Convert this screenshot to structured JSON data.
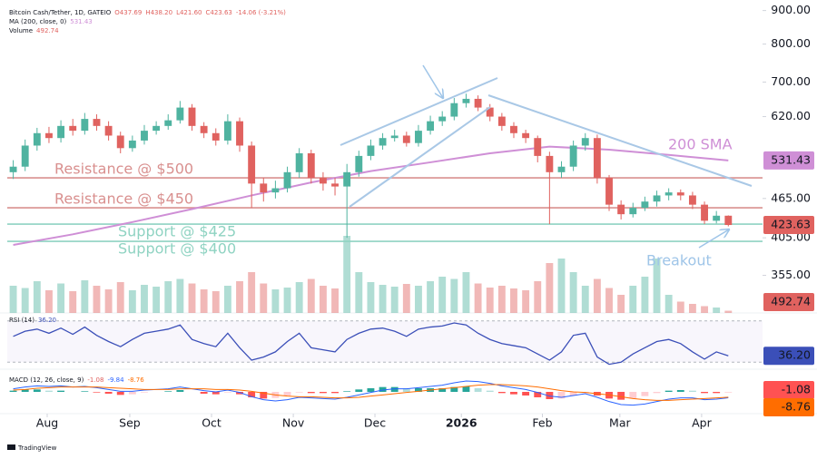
{
  "header": {
    "symbol": "Bitcoin Cash/Tether, 1D, GATEIO",
    "ohlc": [
      "O437.69",
      "H438.20",
      "L421.60",
      "C423.63",
      "-14.06 (-3.21%)"
    ],
    "ma": "MA (200, close, 0)",
    "volume": "Volume",
    "rsi": "RSI (14)",
    "macd": "MACD (12, 26, close, 9)",
    "brand": "TradingView"
  },
  "chart_data": {
    "type": "candlestick",
    "log_scale": true,
    "xlim": [
      -0.5,
      61.5
    ],
    "xticks": [
      {
        "value": 2.85,
        "label": "Aug"
      },
      {
        "value": 9.78,
        "label": "Sep"
      },
      {
        "value": 16.64,
        "label": "Oct"
      },
      {
        "value": 23.5,
        "label": "Nov"
      },
      {
        "value": 30.35,
        "label": "Dec"
      },
      {
        "value": 37.6,
        "label": "2026"
      },
      {
        "value": 44.4,
        "label": "Feb"
      },
      {
        "value": 50.9,
        "label": "Mar"
      },
      {
        "value": 57.76,
        "label": "Apr"
      }
    ],
    "ylim": [
      311,
      934
    ],
    "yticks": [
      {
        "value": 900,
        "label": "900.00"
      },
      {
        "value": 800,
        "label": "800.00"
      },
      {
        "value": 700,
        "label": "700.00"
      },
      {
        "value": 620,
        "label": "620.00"
      },
      {
        "value": 465,
        "label": "465.00"
      },
      {
        "value": 405,
        "label": "405.00"
      },
      {
        "value": 355,
        "label": "355.00"
      }
    ],
    "up_color": "#4fb3a0",
    "down_color": "#e0625f",
    "open": [
      510,
      520,
      560,
      585,
      575,
      600,
      590,
      615,
      600,
      580,
      555,
      570,
      590,
      600,
      612,
      640,
      600,
      585,
      570,
      610,
      560,
      490,
      475,
      482,
      510,
      545,
      500,
      490,
      485,
      510,
      540,
      560,
      575,
      580,
      565,
      590,
      610,
      620,
      650,
      660,
      640,
      620,
      600,
      585,
      575,
      540,
      510,
      520,
      560,
      575,
      500,
      455,
      440,
      450,
      460,
      470,
      475,
      470,
      455,
      430,
      437.69
    ],
    "high": [
      532,
      572,
      596,
      598,
      612,
      615,
      628,
      625,
      610,
      588,
      580,
      602,
      610,
      625,
      655,
      648,
      608,
      595,
      625,
      618,
      568,
      500,
      495,
      520,
      555,
      552,
      510,
      500,
      525,
      550,
      572,
      585,
      592,
      588,
      602,
      622,
      632,
      662,
      672,
      668,
      648,
      628,
      608,
      592,
      580,
      548,
      530,
      570,
      585,
      582,
      505,
      462,
      458,
      468,
      478,
      482,
      480,
      476,
      460,
      445,
      438.2
    ],
    "low": [
      498,
      512,
      550,
      565,
      566,
      580,
      582,
      590,
      570,
      545,
      548,
      562,
      582,
      592,
      605,
      590,
      575,
      560,
      562,
      548,
      450,
      460,
      465,
      475,
      500,
      490,
      478,
      470,
      405,
      502,
      532,
      552,
      568,
      558,
      558,
      582,
      600,
      612,
      640,
      632,
      610,
      590,
      575,
      565,
      528,
      425,
      500,
      512,
      550,
      490,
      445,
      432,
      435,
      445,
      452,
      462,
      462,
      448,
      425,
      426,
      421.6
    ],
    "close": [
      520,
      560,
      585,
      575,
      600,
      590,
      615,
      600,
      580,
      555,
      570,
      590,
      600,
      612,
      640,
      600,
      585,
      570,
      610,
      560,
      490,
      475,
      482,
      510,
      545,
      500,
      490,
      485,
      510,
      540,
      560,
      575,
      580,
      565,
      590,
      610,
      620,
      650,
      660,
      640,
      620,
      600,
      585,
      575,
      540,
      510,
      520,
      560,
      575,
      500,
      455,
      440,
      450,
      460,
      470,
      475,
      470,
      455,
      430,
      437.69,
      423.63
    ],
    "sma": {
      "name": "200 SMA",
      "color": "#cf8fd6",
      "x": [
        0,
        5,
        10,
        15,
        20,
        25,
        30,
        35,
        40,
        45,
        50,
        55,
        60
      ],
      "values": [
        395,
        410,
        428,
        448,
        470,
        492,
        512,
        528,
        545,
        558,
        552,
        542,
        531.43
      ]
    },
    "levels": [
      {
        "label": "Resistance @ $500",
        "value": 500,
        "color": "#d9908f"
      },
      {
        "label": "Resistance @ $450",
        "value": 450,
        "color": "#d9908f"
      },
      {
        "label": "Support @ $425",
        "value": 425,
        "color": "#8fd3c2"
      },
      {
        "label": "Support @ $400",
        "value": 400,
        "color": "#8fd3c2"
      }
    ],
    "annotations": [
      {
        "text": "Breakout",
        "color": "#9fc5e8"
      }
    ],
    "volume": {
      "ylim": [
        0,
        20000
      ],
      "values": [
        6000,
        5500,
        7000,
        5000,
        6500,
        4800,
        7200,
        6000,
        5200,
        6800,
        5000,
        6200,
        5800,
        7000,
        7500,
        6500,
        5200,
        4800,
        6000,
        7000,
        9000,
        6500,
        5200,
        5600,
        6800,
        7500,
        6000,
        5400,
        17000,
        9000,
        6800,
        6200,
        5800,
        6400,
        6000,
        7000,
        8000,
        7500,
        9000,
        6500,
        5600,
        6000,
        5400,
        5000,
        7000,
        11000,
        12000,
        9000,
        6000,
        7500,
        5500,
        4000,
        6000,
        8000,
        12000,
        4000,
        2500,
        2000,
        1500,
        1200,
        492.74
      ]
    },
    "rsi": {
      "color": "#3b4fb8",
      "ylim": [
        25,
        75
      ],
      "levels": [
        30,
        70
      ],
      "values": [
        55,
        60,
        62,
        58,
        63,
        57,
        64,
        56,
        50,
        45,
        52,
        58,
        60,
        62,
        66,
        52,
        48,
        45,
        58,
        44,
        32,
        35,
        40,
        50,
        58,
        44,
        42,
        40,
        52,
        58,
        62,
        63,
        60,
        55,
        62,
        64,
        65,
        68,
        66,
        58,
        52,
        48,
        46,
        44,
        38,
        32,
        40,
        56,
        58,
        35,
        28,
        30,
        38,
        44,
        50,
        52,
        48,
        40,
        33,
        40,
        36.2
      ],
      "value_labels": {
        "60": "36.20"
      }
    },
    "macd": {
      "ylim": [
        -30,
        30
      ],
      "histogram": [
        2,
        4,
        4,
        2,
        2,
        0,
        1,
        -1,
        -3,
        -5,
        -4,
        -1,
        0,
        1,
        3,
        0,
        -3,
        -4,
        -1,
        -4,
        -9,
        -11,
        -10,
        -6,
        -1,
        -2,
        -2,
        -2,
        1,
        4,
        6,
        8,
        8,
        6,
        6,
        6,
        6,
        8,
        9,
        6,
        2,
        -2,
        -4,
        -6,
        -9,
        -12,
        -11,
        -6,
        -2,
        -6,
        -11,
        -13,
        -11,
        -7,
        -2,
        2,
        3,
        2,
        -2,
        -2,
        -1.08
      ],
      "macd_line": {
        "color": "#2962ff",
        "values": [
          5,
          8,
          10,
          9,
          10,
          8,
          9,
          7,
          4,
          1,
          1,
          3,
          4,
          5,
          8,
          5,
          2,
          0,
          3,
          -1,
          -8,
          -13,
          -15,
          -13,
          -9,
          -10,
          -11,
          -12,
          -9,
          -5,
          -1,
          3,
          5,
          5,
          7,
          9,
          11,
          15,
          18,
          17,
          14,
          10,
          7,
          4,
          -1,
          -7,
          -9,
          -6,
          -3,
          -9,
          -16,
          -21,
          -22,
          -20,
          -16,
          -12,
          -10,
          -10,
          -13,
          -12,
          -9.84
        ]
      },
      "signal": {
        "color": "#ff6d00",
        "values": [
          3,
          4,
          6,
          7,
          8,
          8,
          8,
          8,
          7,
          6,
          5,
          4,
          4,
          4,
          5,
          5,
          5,
          4,
          4,
          3,
          1,
          -2,
          -5,
          -7,
          -8,
          -8,
          -9,
          -10,
          -10,
          -9,
          -7,
          -5,
          -3,
          -1,
          1,
          3,
          5,
          7,
          9,
          11,
          12,
          12,
          11,
          10,
          8,
          5,
          2,
          0,
          -1,
          -3,
          -5,
          -8,
          -11,
          -13,
          -14,
          -14,
          -13,
          -12,
          -11,
          -10,
          -8.76
        ]
      }
    }
  }
}
